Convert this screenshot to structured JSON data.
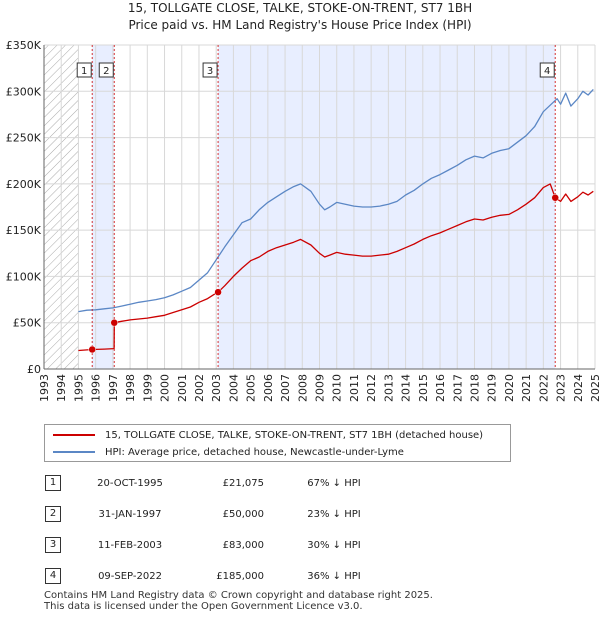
{
  "title": {
    "line1": "15, TOLLGATE CLOSE, TALKE, STOKE-ON-TRENT, ST7 1BH",
    "line2": "Price paid vs. HM Land Registry's House Price Index (HPI)"
  },
  "colors": {
    "property": "#cc0000",
    "hpi": "#5b87c5",
    "shade": "#e8eeff",
    "hatch": "#aaaaaa",
    "grid": "#d8d8d8",
    "marker_line": "#cc0000"
  },
  "legend": {
    "property_label": "15, TOLLGATE CLOSE, TALKE, STOKE-ON-TRENT, ST7 1BH (detached house)",
    "hpi_label": "HPI: Average price, detached house, Newcastle-under-Lyme"
  },
  "sales": [
    {
      "num": "1",
      "date": "20-OCT-1995",
      "price": "£21,075",
      "hpi_diff": "67% ↓ HPI",
      "year": 1995.8,
      "value": 21075
    },
    {
      "num": "2",
      "date": "31-JAN-1997",
      "price": "£50,000",
      "hpi_diff": "23% ↓ HPI",
      "year": 1997.08,
      "value": 50000
    },
    {
      "num": "3",
      "date": "11-FEB-2003",
      "price": "£83,000",
      "hpi_diff": "30% ↓ HPI",
      "year": 2003.11,
      "value": 83000
    },
    {
      "num": "4",
      "date": "09-SEP-2022",
      "price": "£185,000",
      "hpi_diff": "36% ↓ HPI",
      "year": 2022.69,
      "value": 185000
    }
  ],
  "footer": {
    "line1": "Contains HM Land Registry data © Crown copyright and database right 2025.",
    "line2": "This data is licensed under the Open Government Licence v3.0."
  },
  "chart_data": {
    "type": "line",
    "title": "15, TOLLGATE CLOSE, TALKE, STOKE-ON-TRENT, ST7 1BH — Price paid vs. HM Land Registry's House Price Index (HPI)",
    "xlabel": "",
    "ylabel": "",
    "xlim": [
      1993,
      2025
    ],
    "ylim": [
      0,
      350000
    ],
    "x_ticks": [
      1993,
      1994,
      1995,
      1996,
      1997,
      1998,
      1999,
      2000,
      2001,
      2002,
      2003,
      2004,
      2005,
      2006,
      2007,
      2008,
      2009,
      2010,
      2011,
      2012,
      2013,
      2014,
      2015,
      2016,
      2017,
      2018,
      2019,
      2020,
      2021,
      2022,
      2023,
      2024,
      2025
    ],
    "y_ticks": [
      {
        "value": 0,
        "label": "£0"
      },
      {
        "value": 50000,
        "label": "£50K"
      },
      {
        "value": 100000,
        "label": "£100K"
      },
      {
        "value": 150000,
        "label": "£150K"
      },
      {
        "value": 200000,
        "label": "£200K"
      },
      {
        "value": 250000,
        "label": "£250K"
      },
      {
        "value": 300000,
        "label": "£300K"
      },
      {
        "value": 350000,
        "label": "£350K"
      }
    ],
    "grid": true,
    "hatched_ranges": [
      [
        1993,
        1995.0
      ],
      [
        2025.0,
        2025.0
      ]
    ],
    "shaded_ranges": [
      [
        1995.8,
        1997.08
      ],
      [
        2003.11,
        2022.69
      ]
    ],
    "series": [
      {
        "name": "HPI: Average price, detached house, Newcastle-under-Lyme",
        "x": [
          1995.0,
          1995.5,
          1996.0,
          1996.5,
          1997.0,
          1997.5,
          1998.0,
          1998.5,
          1999.0,
          1999.5,
          2000.0,
          2000.5,
          2001.0,
          2001.5,
          2002.0,
          2002.5,
          2003.0,
          2003.5,
          2004.0,
          2004.5,
          2005.0,
          2005.5,
          2006.0,
          2006.5,
          2007.0,
          2007.5,
          2007.9,
          2008.5,
          2009.0,
          2009.3,
          2009.6,
          2010.0,
          2010.5,
          2011.0,
          2011.5,
          2012.0,
          2012.5,
          2013.0,
          2013.5,
          2014.0,
          2014.5,
          2015.0,
          2015.5,
          2016.0,
          2016.5,
          2017.0,
          2017.5,
          2018.0,
          2018.5,
          2019.0,
          2019.5,
          2020.0,
          2020.5,
          2021.0,
          2021.5,
          2022.0,
          2022.4,
          2022.8,
          2023.0,
          2023.3,
          2023.6,
          2024.0,
          2024.3,
          2024.6,
          2024.9
        ],
        "values": [
          62000,
          63500,
          64000,
          65000,
          66000,
          68000,
          70000,
          72000,
          73500,
          75000,
          77000,
          80000,
          84000,
          88000,
          96000,
          104000,
          118000,
          132000,
          145000,
          158000,
          162000,
          172000,
          180000,
          186000,
          192000,
          197000,
          200000,
          192000,
          178000,
          172000,
          175000,
          180000,
          178000,
          176000,
          175000,
          175000,
          176000,
          178000,
          181000,
          188000,
          193000,
          200000,
          206000,
          210000,
          215000,
          220000,
          226000,
          230000,
          228000,
          233000,
          236000,
          238000,
          245000,
          252000,
          262000,
          278000,
          285000,
          292000,
          286000,
          298000,
          284000,
          292000,
          300000,
          296000,
          302000
        ]
      },
      {
        "name": "15, TOLLGATE CLOSE, TALKE, STOKE-ON-TRENT, ST7 1BH (detached house)",
        "x": [
          1995.0,
          1995.8,
          1996.5,
          1997.07,
          1997.08,
          1997.5,
          1998.0,
          1998.5,
          1999.0,
          1999.5,
          2000.0,
          2000.5,
          2001.0,
          2001.5,
          2002.0,
          2002.5,
          2003.0,
          2003.11,
          2003.5,
          2004.0,
          2004.5,
          2005.0,
          2005.5,
          2006.0,
          2006.5,
          2007.0,
          2007.5,
          2007.9,
          2008.5,
          2009.0,
          2009.3,
          2009.6,
          2010.0,
          2010.5,
          2011.0,
          2011.5,
          2012.0,
          2012.5,
          2013.0,
          2013.5,
          2014.0,
          2014.5,
          2015.0,
          2015.5,
          2016.0,
          2016.5,
          2017.0,
          2017.5,
          2018.0,
          2018.5,
          2019.0,
          2019.5,
          2020.0,
          2020.5,
          2021.0,
          2021.5,
          2022.0,
          2022.4,
          2022.69,
          2023.0,
          2023.3,
          2023.6,
          2024.0,
          2024.3,
          2024.6,
          2024.9
        ],
        "values": [
          20000,
          21075,
          21500,
          22000,
          50000,
          51500,
          53000,
          54000,
          55000,
          56500,
          58000,
          61000,
          64000,
          67000,
          72000,
          76000,
          82000,
          83000,
          90000,
          100000,
          109000,
          117000,
          121000,
          127000,
          131000,
          134000,
          137000,
          140000,
          134000,
          125000,
          121000,
          123000,
          126000,
          124000,
          123000,
          122000,
          122000,
          123000,
          124000,
          127000,
          131000,
          135000,
          140000,
          144000,
          147000,
          151000,
          155000,
          159000,
          162000,
          161000,
          164000,
          166000,
          167000,
          172000,
          178000,
          185000,
          196000,
          200000,
          185000,
          181000,
          189000,
          181000,
          186000,
          191000,
          188000,
          192000
        ]
      }
    ],
    "sale_markers": [
      {
        "label": "1",
        "x": 1995.8,
        "y": 21075
      },
      {
        "label": "2",
        "x": 1997.08,
        "y": 50000
      },
      {
        "label": "3",
        "x": 2003.11,
        "y": 83000
      },
      {
        "label": "4",
        "x": 2022.69,
        "y": 185000
      }
    ]
  }
}
